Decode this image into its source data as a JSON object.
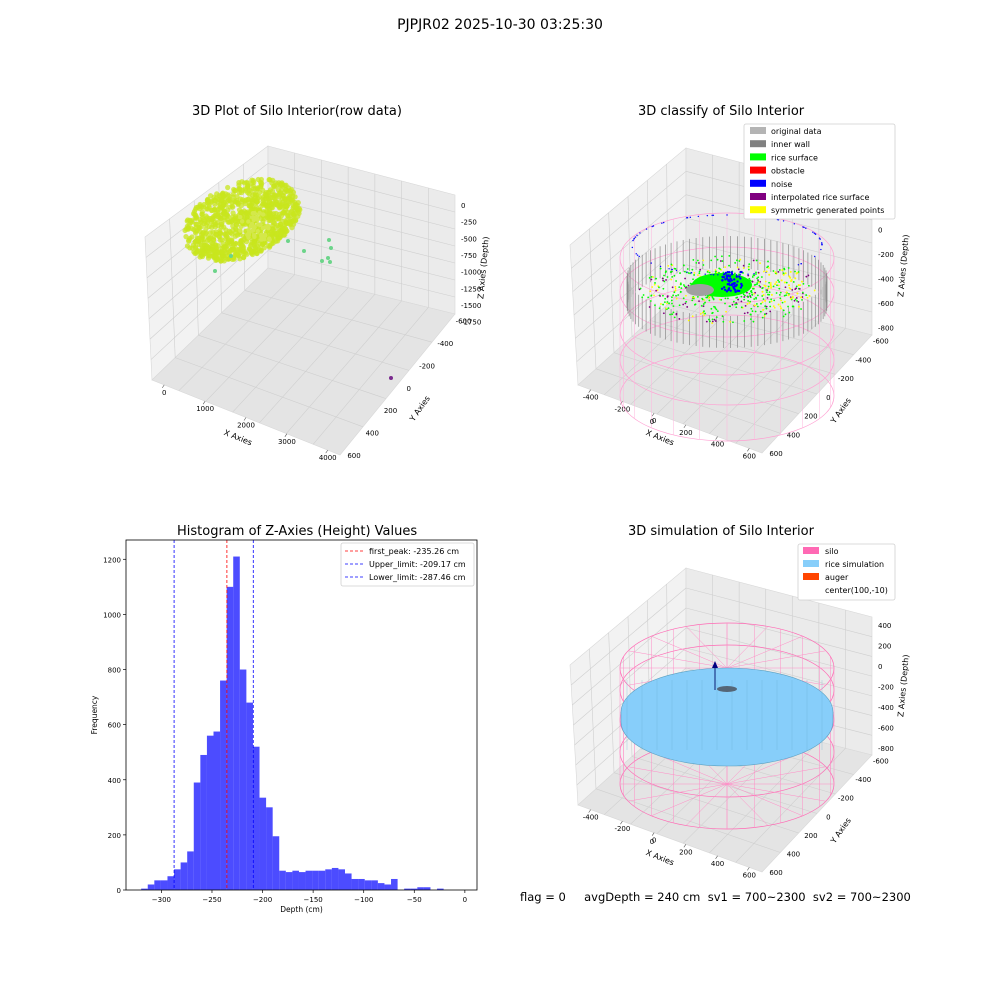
{
  "suptitle": "PJPJR02 2025-10-30 03:25:30",
  "footer": "flag = 0     avgDepth = 240 cm  sv1 = 700~2300  sv2 = 700~2300",
  "chart_data": [
    {
      "type": "scatter3d",
      "title": "3D Plot of Silo Interior(row data)",
      "xlabel": "X Axies",
      "ylabel": "Y Axies",
      "zlabel": "Z Axies (Depth)",
      "xticks": [
        "0",
        "1000",
        "2000",
        "3000",
        "4000"
      ],
      "yticks": [
        "600",
        "400",
        "200",
        "0",
        "-200",
        "-400",
        "-600"
      ],
      "zticks": [
        "0",
        "-250",
        "-500",
        "-750",
        "-1000",
        "-1250",
        "-1500",
        "-1750"
      ],
      "xlim": [
        -700,
        4200
      ],
      "ylim": [
        -700,
        700
      ],
      "zlim": [
        -1900,
        80
      ],
      "colors": {
        "dense": "#c8e61e",
        "sparse": "#6cd48a",
        "far": "#7a2a8e"
      }
    },
    {
      "type": "scatter3d",
      "title": "3D classify of Silo Interior",
      "xlabel": "X Axies",
      "ylabel": "Y Axies",
      "zlabel": "Z Axies (Depth)",
      "xticks": [
        "-400",
        "-200",
        "0",
        "200",
        "400",
        "600"
      ],
      "yticks": [
        "600",
        "400",
        "200",
        "0",
        "-200",
        "-400",
        "-600"
      ],
      "zticks": [
        "200",
        "0",
        "-200",
        "-400",
        "-600",
        "-800"
      ],
      "legend": [
        {
          "label": "original data",
          "color": "#b4b4b4"
        },
        {
          "label": "inner wall",
          "color": "#808080"
        },
        {
          "label": "rice surface",
          "color": "#00ff00"
        },
        {
          "label": "obstacle",
          "color": "#ff0000"
        },
        {
          "label": "noise",
          "color": "#0000ff"
        },
        {
          "label": "interpolated rice surface",
          "color": "#800080"
        },
        {
          "label": "symmetric generated points",
          "color": "#ffff00"
        }
      ],
      "extra_tick": "0"
    },
    {
      "type": "bar",
      "title": "Histogram of Z-Axies (Height) Values",
      "xlabel": "Depth (cm)",
      "ylabel": "Frequency",
      "xlim": [
        -335,
        12
      ],
      "ylim": [
        0,
        1270
      ],
      "xticks": [
        -300,
        -250,
        -200,
        -150,
        -100,
        -50,
        0
      ],
      "yticks": [
        0,
        200,
        400,
        600,
        800,
        1000,
        1200
      ],
      "bin_start": -320,
      "bin_width": 6.5,
      "values": [
        5,
        20,
        35,
        35,
        50,
        75,
        100,
        140,
        390,
        490,
        560,
        575,
        760,
        1100,
        1210,
        800,
        680,
        520,
        335,
        300,
        195,
        70,
        65,
        70,
        65,
        70,
        70,
        70,
        75,
        80,
        75,
        60,
        40,
        40,
        35,
        35,
        25,
        20,
        40,
        0,
        5,
        5,
        10,
        10,
        0,
        5
      ],
      "color": "#0000ff",
      "lines": [
        {
          "label": "first_peak: -235.26 cm",
          "x": -235.26,
          "color": "#ff0000"
        },
        {
          "label": "Upper_limit: -209.17 cm",
          "x": -209.17,
          "color": "#0000ff"
        },
        {
          "label": "Lower_limit: -287.46 cm",
          "x": -287.46,
          "color": "#0000ff"
        }
      ]
    },
    {
      "type": "surface3d",
      "title": "3D simulation of Silo Interior",
      "xlabel": "X Axies",
      "ylabel": "Y Axies",
      "zlabel": "Z Axies (Depth)",
      "xticks": [
        "-400",
        "-200",
        "0",
        "200",
        "400",
        "600"
      ],
      "yticks": [
        "600",
        "400",
        "200",
        "0",
        "-200",
        "-400",
        "-600"
      ],
      "zticks": [
        "400",
        "200",
        "0",
        "-200",
        "-400",
        "-600",
        "-800"
      ],
      "legend": [
        {
          "label": "silo",
          "color": "#ff69b4"
        },
        {
          "label": "rice simulation",
          "color": "#87cefa"
        },
        {
          "label": "auger",
          "color": "#ff4500"
        },
        {
          "label": "center(100,-10)",
          "color": ""
        }
      ],
      "extra_tick": "0"
    }
  ]
}
